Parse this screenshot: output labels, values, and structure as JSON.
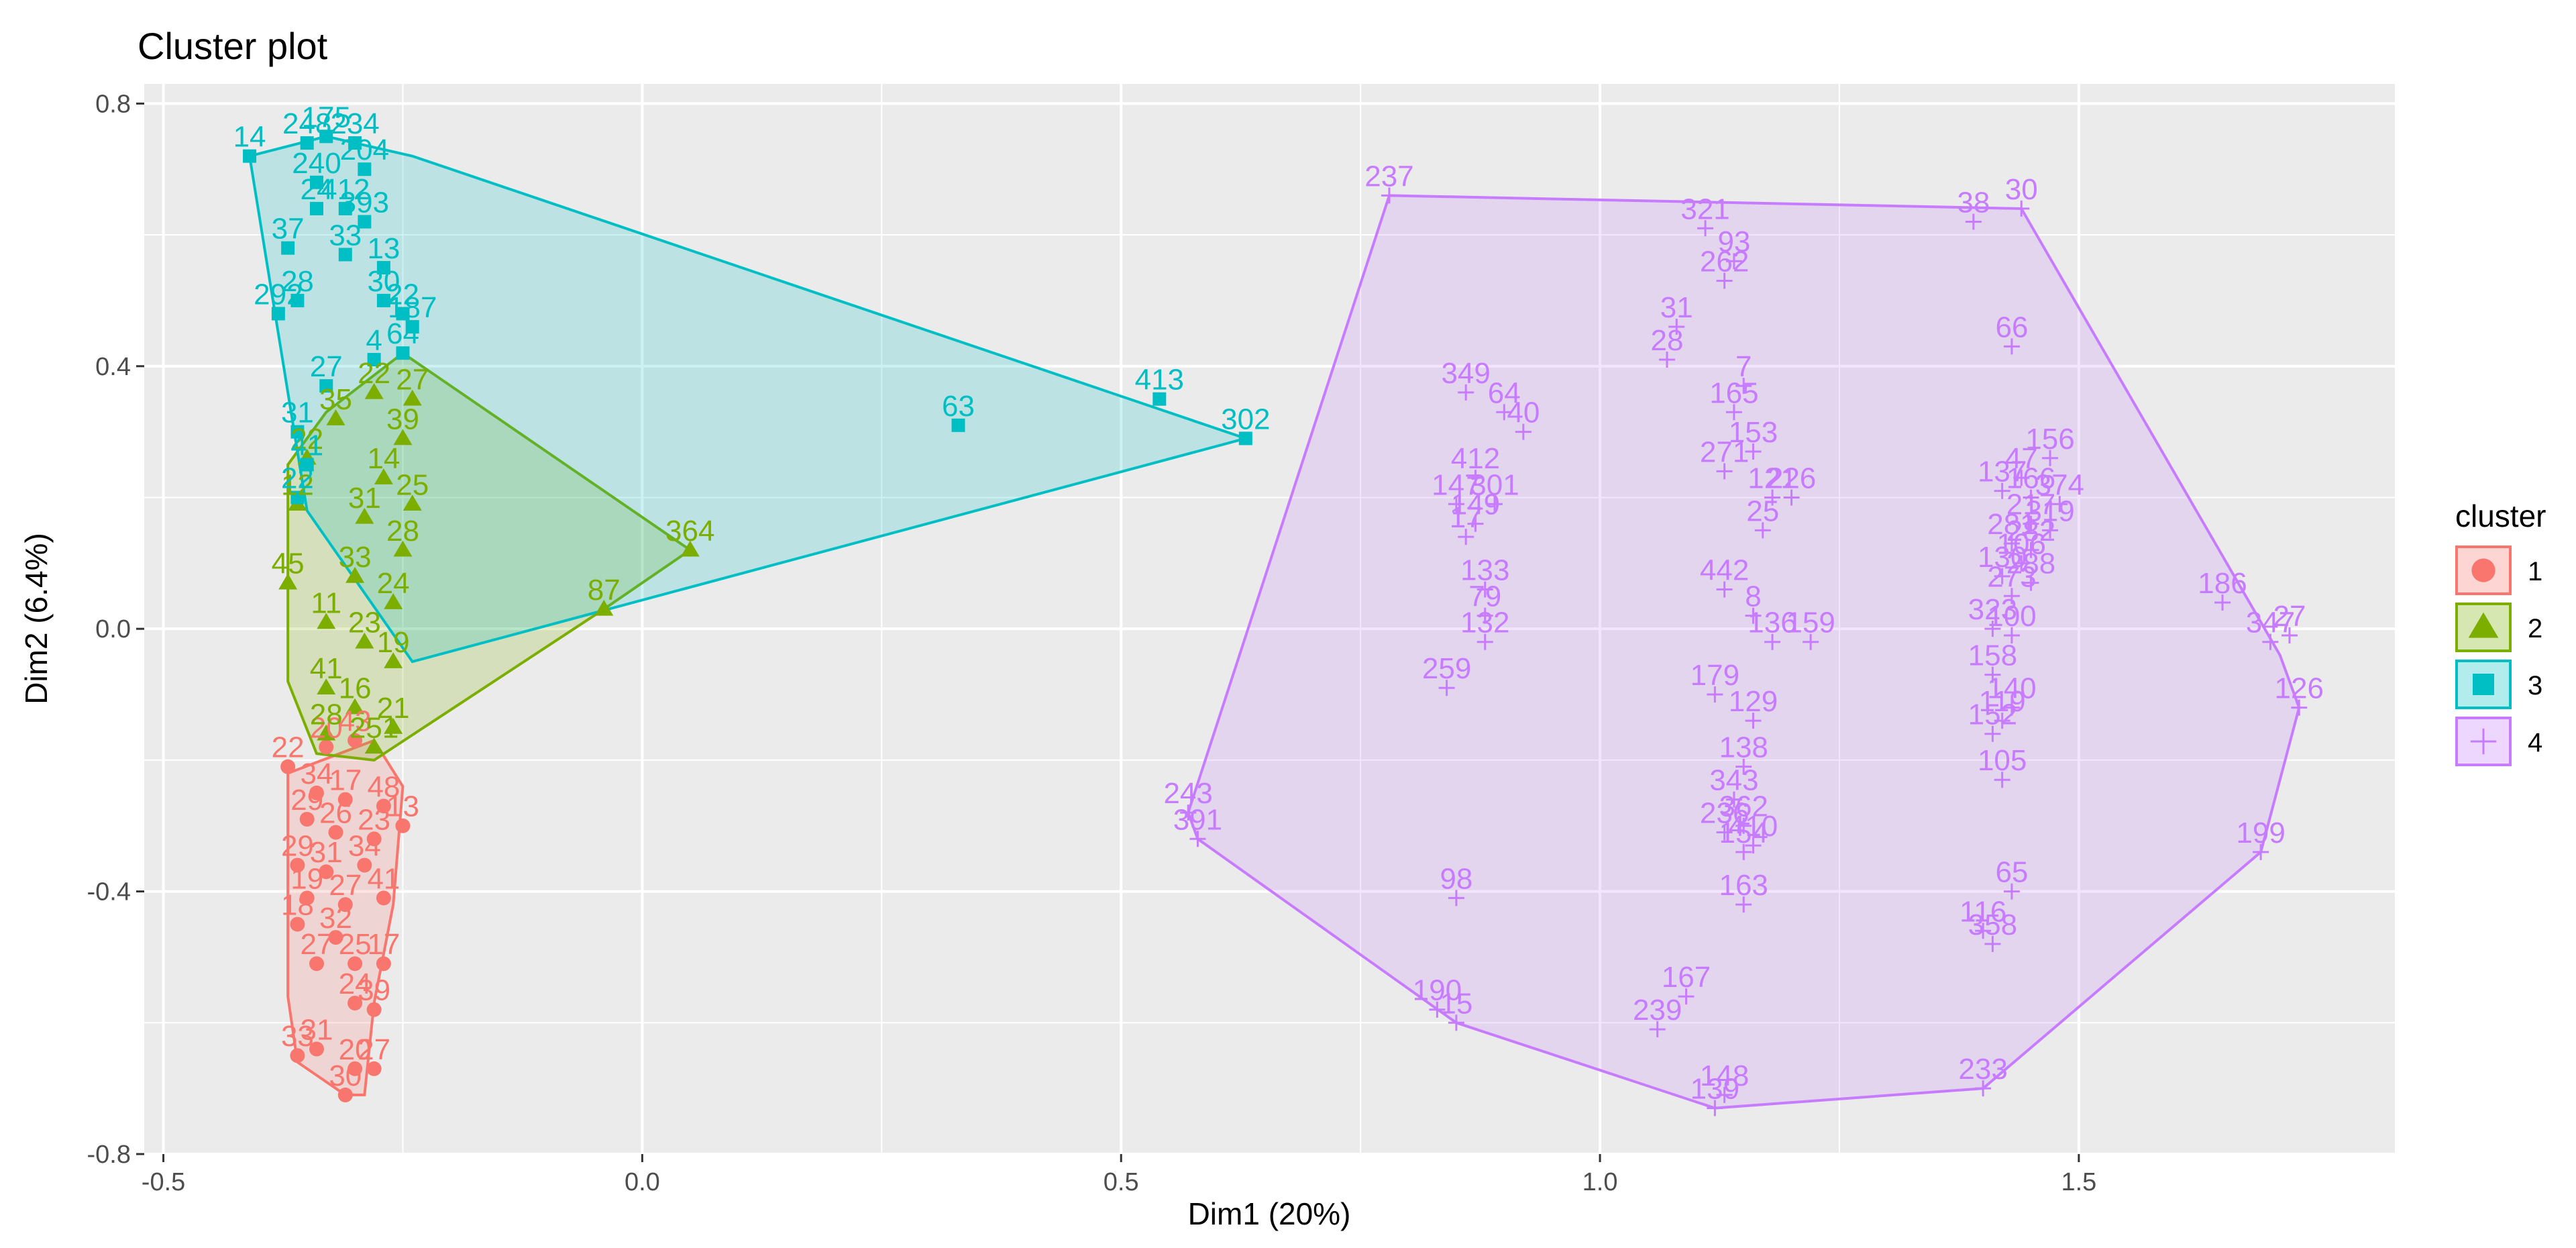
{
  "chart_data": {
    "type": "scatter",
    "title": "Cluster plot",
    "xlabel": "Dim1 (20%)",
    "ylabel": "Dim2 (6.4%)",
    "xlim": [
      -0.52,
      1.83
    ],
    "ylim": [
      -0.8,
      0.83
    ],
    "xticks": [
      -0.5,
      0.0,
      0.5,
      1.0,
      1.5
    ],
    "xtick_labels": [
      "-0.5",
      "0.0",
      "0.5",
      "1.0",
      "1.5"
    ],
    "yticks": [
      -0.8,
      -0.4,
      0.0,
      0.4,
      0.8
    ],
    "ytick_labels": [
      "-0.8",
      "-0.4",
      "0.0",
      "0.4",
      "0.8"
    ],
    "legend": {
      "title": "cluster",
      "position": "right",
      "entries": [
        {
          "label": "1",
          "shape": "circle",
          "color": "#F8766D"
        },
        {
          "label": "2",
          "shape": "triangle",
          "color": "#7CAE00"
        },
        {
          "label": "3",
          "shape": "square",
          "color": "#00BFC4"
        },
        {
          "label": "4",
          "shape": "plus",
          "color": "#C77CFF"
        }
      ]
    },
    "series": [
      {
        "name": "1",
        "color": "#F8766D",
        "fill": "#F8766D",
        "shape": "circle",
        "hull": [
          [
            -0.37,
            -0.22
          ],
          [
            -0.28,
            -0.17
          ],
          [
            -0.25,
            -0.24
          ],
          [
            -0.26,
            -0.42
          ],
          [
            -0.28,
            -0.57
          ],
          [
            -0.29,
            -0.71
          ],
          [
            -0.31,
            -0.71
          ],
          [
            -0.36,
            -0.66
          ],
          [
            -0.37,
            -0.56
          ],
          [
            -0.37,
            -0.22
          ]
        ],
        "points": [
          {
            "x": -0.37,
            "y": -0.21,
            "label": "22"
          },
          {
            "x": -0.33,
            "y": -0.18,
            "label": "20"
          },
          {
            "x": -0.3,
            "y": -0.17,
            "label": "43"
          },
          {
            "x": -0.34,
            "y": -0.25,
            "label": "34"
          },
          {
            "x": -0.31,
            "y": -0.26,
            "label": "17"
          },
          {
            "x": -0.27,
            "y": -0.27,
            "label": "48"
          },
          {
            "x": -0.35,
            "y": -0.29,
            "label": "29"
          },
          {
            "x": -0.32,
            "y": -0.31,
            "label": "26"
          },
          {
            "x": -0.28,
            "y": -0.32,
            "label": "23"
          },
          {
            "x": -0.25,
            "y": -0.3,
            "label": "13"
          },
          {
            "x": -0.36,
            "y": -0.36,
            "label": "29"
          },
          {
            "x": -0.33,
            "y": -0.37,
            "label": "31"
          },
          {
            "x": -0.29,
            "y": -0.36,
            "label": "34"
          },
          {
            "x": -0.35,
            "y": -0.41,
            "label": "19"
          },
          {
            "x": -0.31,
            "y": -0.42,
            "label": "27"
          },
          {
            "x": -0.27,
            "y": -0.41,
            "label": "41"
          },
          {
            "x": -0.36,
            "y": -0.45,
            "label": "18"
          },
          {
            "x": -0.32,
            "y": -0.47,
            "label": "32"
          },
          {
            "x": -0.34,
            "y": -0.51,
            "label": "27"
          },
          {
            "x": -0.3,
            "y": -0.51,
            "label": "25"
          },
          {
            "x": -0.27,
            "y": -0.51,
            "label": "17"
          },
          {
            "x": -0.3,
            "y": -0.57,
            "label": "24"
          },
          {
            "x": -0.28,
            "y": -0.58,
            "label": "39"
          },
          {
            "x": -0.36,
            "y": -0.65,
            "label": "33"
          },
          {
            "x": -0.34,
            "y": -0.64,
            "label": "31"
          },
          {
            "x": -0.3,
            "y": -0.67,
            "label": "20"
          },
          {
            "x": -0.28,
            "y": -0.67,
            "label": "27"
          },
          {
            "x": -0.31,
            "y": -0.71,
            "label": "30"
          }
        ]
      },
      {
        "name": "2",
        "color": "#7CAE00",
        "fill": "#7CAE00",
        "shape": "triangle",
        "hull": [
          [
            -0.37,
            0.08
          ],
          [
            -0.37,
            0.25
          ],
          [
            -0.33,
            0.33
          ],
          [
            -0.25,
            0.42
          ],
          [
            0.05,
            0.12
          ],
          [
            -0.04,
            0.03
          ],
          [
            -0.28,
            -0.2
          ],
          [
            -0.34,
            -0.19
          ],
          [
            -0.37,
            -0.08
          ],
          [
            -0.37,
            0.08
          ]
        ],
        "points": [
          {
            "x": -0.37,
            "y": 0.07,
            "label": "45"
          },
          {
            "x": -0.36,
            "y": 0.19,
            "label": "12"
          },
          {
            "x": -0.35,
            "y": 0.26,
            "label": "22"
          },
          {
            "x": -0.32,
            "y": 0.32,
            "label": "35"
          },
          {
            "x": -0.28,
            "y": 0.36,
            "label": "22"
          },
          {
            "x": -0.24,
            "y": 0.35,
            "label": "27"
          },
          {
            "x": -0.25,
            "y": 0.29,
            "label": "39"
          },
          {
            "x": -0.27,
            "y": 0.23,
            "label": "14"
          },
          {
            "x": -0.24,
            "y": 0.19,
            "label": "25"
          },
          {
            "x": -0.29,
            "y": 0.17,
            "label": "31"
          },
          {
            "x": -0.25,
            "y": 0.12,
            "label": "28"
          },
          {
            "x": -0.3,
            "y": 0.08,
            "label": "33"
          },
          {
            "x": -0.26,
            "y": 0.04,
            "label": "24"
          },
          {
            "x": -0.33,
            "y": 0.01,
            "label": "11"
          },
          {
            "x": -0.29,
            "y": -0.02,
            "label": "23"
          },
          {
            "x": -0.26,
            "y": -0.05,
            "label": "19"
          },
          {
            "x": -0.33,
            "y": -0.09,
            "label": "41"
          },
          {
            "x": -0.3,
            "y": -0.12,
            "label": "16"
          },
          {
            "x": -0.26,
            "y": -0.15,
            "label": "21"
          },
          {
            "x": -0.33,
            "y": -0.16,
            "label": "28"
          },
          {
            "x": -0.28,
            "y": -0.18,
            "label": "251"
          },
          {
            "x": 0.05,
            "y": 0.12,
            "label": "364"
          },
          {
            "x": -0.04,
            "y": 0.03,
            "label": "87"
          }
        ]
      },
      {
        "name": "3",
        "color": "#00BFC4",
        "fill": "#00BFC4",
        "shape": "square",
        "hull": [
          [
            -0.41,
            0.72
          ],
          [
            -0.33,
            0.75
          ],
          [
            -0.24,
            0.72
          ],
          [
            0.63,
            0.29
          ],
          [
            -0.24,
            -0.05
          ],
          [
            -0.35,
            0.18
          ],
          [
            -0.41,
            0.72
          ]
        ],
        "points": [
          {
            "x": -0.41,
            "y": 0.72,
            "label": "14"
          },
          {
            "x": -0.33,
            "y": 0.75,
            "label": "175"
          },
          {
            "x": -0.35,
            "y": 0.74,
            "label": "248"
          },
          {
            "x": -0.3,
            "y": 0.74,
            "label": "234"
          },
          {
            "x": -0.29,
            "y": 0.7,
            "label": "204"
          },
          {
            "x": -0.34,
            "y": 0.68,
            "label": "240"
          },
          {
            "x": -0.34,
            "y": 0.64,
            "label": "24"
          },
          {
            "x": -0.31,
            "y": 0.64,
            "label": "412"
          },
          {
            "x": -0.29,
            "y": 0.62,
            "label": "393"
          },
          {
            "x": -0.37,
            "y": 0.58,
            "label": "37"
          },
          {
            "x": -0.31,
            "y": 0.57,
            "label": "33"
          },
          {
            "x": -0.27,
            "y": 0.55,
            "label": "13"
          },
          {
            "x": -0.36,
            "y": 0.5,
            "label": "28"
          },
          {
            "x": -0.38,
            "y": 0.48,
            "label": "292"
          },
          {
            "x": -0.27,
            "y": 0.5,
            "label": "30"
          },
          {
            "x": -0.25,
            "y": 0.48,
            "label": "22"
          },
          {
            "x": -0.24,
            "y": 0.46,
            "label": "187"
          },
          {
            "x": -0.28,
            "y": 0.41,
            "label": "4"
          },
          {
            "x": -0.25,
            "y": 0.42,
            "label": "64"
          },
          {
            "x": -0.33,
            "y": 0.37,
            "label": "27"
          },
          {
            "x": -0.36,
            "y": 0.3,
            "label": "31"
          },
          {
            "x": -0.35,
            "y": 0.25,
            "label": "41"
          },
          {
            "x": -0.36,
            "y": 0.2,
            "label": "22"
          },
          {
            "x": 0.33,
            "y": 0.31,
            "label": "63"
          },
          {
            "x": 0.54,
            "y": 0.35,
            "label": "413"
          },
          {
            "x": 0.63,
            "y": 0.29,
            "label": "302"
          }
        ]
      },
      {
        "name": "4",
        "color": "#C77CFF",
        "fill": "#C77CFF",
        "shape": "plus",
        "hull": [
          [
            0.78,
            0.66
          ],
          [
            1.44,
            0.64
          ],
          [
            1.71,
            -0.04
          ],
          [
            1.73,
            -0.12
          ],
          [
            1.69,
            -0.34
          ],
          [
            1.4,
            -0.7
          ],
          [
            1.12,
            -0.73
          ],
          [
            0.85,
            -0.6
          ],
          [
            0.58,
            -0.32
          ],
          [
            0.57,
            -0.28
          ],
          [
            0.78,
            0.66
          ]
        ],
        "points": [
          {
            "x": 0.78,
            "y": 0.66,
            "label": "237"
          },
          {
            "x": 1.44,
            "y": 0.64,
            "label": "30"
          },
          {
            "x": 1.39,
            "y": 0.62,
            "label": "38"
          },
          {
            "x": 1.11,
            "y": 0.61,
            "label": "321"
          },
          {
            "x": 1.14,
            "y": 0.56,
            "label": "93"
          },
          {
            "x": 1.13,
            "y": 0.53,
            "label": "262"
          },
          {
            "x": 1.08,
            "y": 0.46,
            "label": "31"
          },
          {
            "x": 1.07,
            "y": 0.41,
            "label": "28"
          },
          {
            "x": 1.43,
            "y": 0.43,
            "label": "66"
          },
          {
            "x": 0.86,
            "y": 0.36,
            "label": "349"
          },
          {
            "x": 0.9,
            "y": 0.33,
            "label": "64"
          },
          {
            "x": 0.92,
            "y": 0.3,
            "label": "40"
          },
          {
            "x": 1.15,
            "y": 0.37,
            "label": "7"
          },
          {
            "x": 1.14,
            "y": 0.33,
            "label": "165"
          },
          {
            "x": 1.16,
            "y": 0.27,
            "label": "153"
          },
          {
            "x": 1.13,
            "y": 0.24,
            "label": "271"
          },
          {
            "x": 0.87,
            "y": 0.23,
            "label": "412"
          },
          {
            "x": 0.89,
            "y": 0.19,
            "label": "301"
          },
          {
            "x": 0.85,
            "y": 0.19,
            "label": "147"
          },
          {
            "x": 0.87,
            "y": 0.16,
            "label": "149"
          },
          {
            "x": 0.86,
            "y": 0.14,
            "label": "17"
          },
          {
            "x": 1.18,
            "y": 0.2,
            "label": "121"
          },
          {
            "x": 1.2,
            "y": 0.2,
            "label": "226"
          },
          {
            "x": 1.17,
            "y": 0.15,
            "label": "25"
          },
          {
            "x": 0.88,
            "y": 0.06,
            "label": "133"
          },
          {
            "x": 0.88,
            "y": 0.02,
            "label": "79"
          },
          {
            "x": 0.88,
            "y": -0.02,
            "label": "132"
          },
          {
            "x": 0.84,
            "y": -0.09,
            "label": "259"
          },
          {
            "x": 1.13,
            "y": 0.06,
            "label": "442"
          },
          {
            "x": 1.16,
            "y": 0.02,
            "label": "8"
          },
          {
            "x": 1.18,
            "y": -0.02,
            "label": "136"
          },
          {
            "x": 1.22,
            "y": -0.02,
            "label": "159"
          },
          {
            "x": 1.12,
            "y": -0.1,
            "label": "179"
          },
          {
            "x": 1.16,
            "y": -0.14,
            "label": "129"
          },
          {
            "x": 1.15,
            "y": -0.21,
            "label": "138"
          },
          {
            "x": 1.14,
            "y": -0.26,
            "label": "343"
          },
          {
            "x": 1.15,
            "y": -0.3,
            "label": "362"
          },
          {
            "x": 1.13,
            "y": -0.31,
            "label": "236"
          },
          {
            "x": 1.16,
            "y": -0.33,
            "label": "410"
          },
          {
            "x": 1.15,
            "y": -0.34,
            "label": "154"
          },
          {
            "x": 1.15,
            "y": -0.42,
            "label": "163"
          },
          {
            "x": 1.47,
            "y": 0.26,
            "label": "156"
          },
          {
            "x": 1.44,
            "y": 0.23,
            "label": "47"
          },
          {
            "x": 1.42,
            "y": 0.21,
            "label": "137"
          },
          {
            "x": 1.45,
            "y": 0.2,
            "label": "166"
          },
          {
            "x": 1.48,
            "y": 0.19,
            "label": "374"
          },
          {
            "x": 1.45,
            "y": 0.16,
            "label": "217"
          },
          {
            "x": 1.47,
            "y": 0.15,
            "label": "319"
          },
          {
            "x": 1.43,
            "y": 0.13,
            "label": "281"
          },
          {
            "x": 1.45,
            "y": 0.12,
            "label": "282"
          },
          {
            "x": 1.44,
            "y": 0.1,
            "label": "106"
          },
          {
            "x": 1.42,
            "y": 0.08,
            "label": "130"
          },
          {
            "x": 1.45,
            "y": 0.07,
            "label": "288"
          },
          {
            "x": 1.43,
            "y": 0.05,
            "label": "273"
          },
          {
            "x": 1.41,
            "y": 0.0,
            "label": "323"
          },
          {
            "x": 1.43,
            "y": -0.01,
            "label": "100"
          },
          {
            "x": 1.41,
            "y": -0.07,
            "label": "158"
          },
          {
            "x": 1.43,
            "y": -0.12,
            "label": "140"
          },
          {
            "x": 1.42,
            "y": -0.14,
            "label": "119"
          },
          {
            "x": 1.41,
            "y": -0.16,
            "label": "152"
          },
          {
            "x": 1.42,
            "y": -0.23,
            "label": "105"
          },
          {
            "x": 1.43,
            "y": -0.4,
            "label": "65"
          },
          {
            "x": 1.4,
            "y": -0.46,
            "label": "116"
          },
          {
            "x": 1.41,
            "y": -0.48,
            "label": "358"
          },
          {
            "x": 1.65,
            "y": 0.04,
            "label": "186"
          },
          {
            "x": 1.7,
            "y": -0.02,
            "label": "347"
          },
          {
            "x": 1.72,
            "y": -0.01,
            "label": "27"
          },
          {
            "x": 1.73,
            "y": -0.12,
            "label": "126"
          },
          {
            "x": 1.69,
            "y": -0.34,
            "label": "199"
          },
          {
            "x": 0.57,
            "y": -0.28,
            "label": "243"
          },
          {
            "x": 0.58,
            "y": -0.32,
            "label": "391"
          },
          {
            "x": 0.85,
            "y": -0.41,
            "label": "98"
          },
          {
            "x": 0.83,
            "y": -0.58,
            "label": "190"
          },
          {
            "x": 0.85,
            "y": -0.6,
            "label": "15"
          },
          {
            "x": 1.09,
            "y": -0.56,
            "label": "167"
          },
          {
            "x": 1.06,
            "y": -0.61,
            "label": "239"
          },
          {
            "x": 1.4,
            "y": -0.7,
            "label": "233"
          },
          {
            "x": 1.13,
            "y": -0.71,
            "label": "148"
          },
          {
            "x": 1.12,
            "y": -0.73,
            "label": "139"
          }
        ]
      }
    ]
  }
}
